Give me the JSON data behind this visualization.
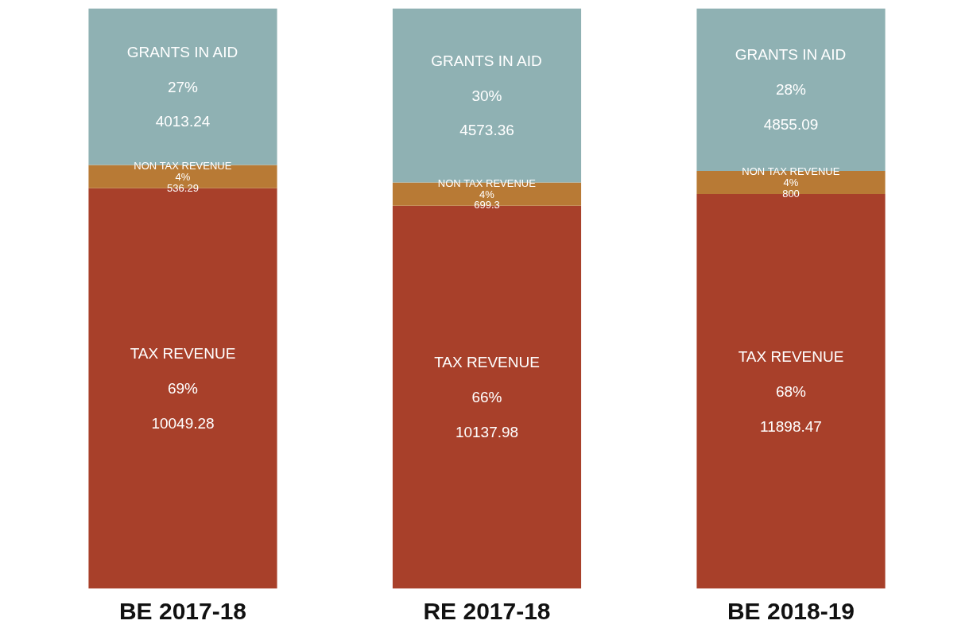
{
  "chart_data": {
    "type": "bar",
    "stacked": true,
    "categories": [
      "BE 2017-18",
      "RE 2017-18",
      "BE 2018-19"
    ],
    "series": [
      {
        "name": "TAX REVENUE",
        "color": "#a8402a",
        "values": [
          69,
          66,
          68
        ],
        "value_labels": [
          "69%\n10049.28",
          "66%\n10137.98",
          "68%\n11898.47"
        ]
      },
      {
        "name": "NON TAX REVENUE",
        "color": "#b87a35",
        "values": [
          4,
          4,
          4
        ],
        "value_labels": [
          "4%\n536.29",
          "4%\n699.3",
          "4%\n800"
        ]
      },
      {
        "name": "GRANTS IN AID",
        "color": "#8fb1b3",
        "values": [
          27,
          30,
          28
        ],
        "value_labels": [
          "27%\n4013.24",
          "30%\n4573.36",
          "28%\n4855.09"
        ]
      }
    ],
    "ylim": [
      0,
      100
    ],
    "grid": false,
    "tick_labels": "x"
  }
}
